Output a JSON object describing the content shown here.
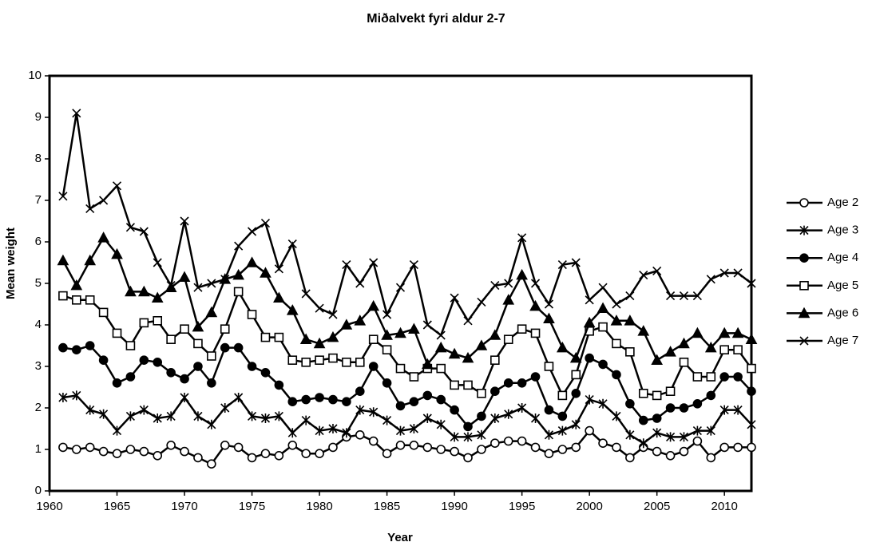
{
  "chart_data": {
    "type": "line",
    "title": "Miðalvekt fyri aldur 2-7",
    "xlabel": "Year",
    "ylabel": "Mean weight",
    "x": [
      1961,
      1962,
      1963,
      1964,
      1965,
      1966,
      1967,
      1968,
      1969,
      1970,
      1971,
      1972,
      1973,
      1974,
      1975,
      1976,
      1977,
      1978,
      1979,
      1980,
      1981,
      1982,
      1983,
      1984,
      1985,
      1986,
      1987,
      1988,
      1989,
      1990,
      1991,
      1992,
      1993,
      1994,
      1995,
      1996,
      1997,
      1998,
      1999,
      2000,
      2001,
      2002,
      2003,
      2004,
      2005,
      2006,
      2007,
      2008,
      2009,
      2010,
      2011,
      2012
    ],
    "xlim": [
      1960,
      2012
    ],
    "xticks": [
      1960,
      1965,
      1970,
      1975,
      1980,
      1985,
      1990,
      1995,
      2000,
      2005,
      2010
    ],
    "ylim": [
      0,
      10
    ],
    "yticks": [
      0,
      1,
      2,
      3,
      4,
      5,
      6,
      7,
      8,
      9,
      10
    ],
    "grid": false,
    "legend": "right",
    "series": [
      {
        "name": "Age 2",
        "color": "#000000",
        "marker": "circle-open",
        "values": [
          1.05,
          1.0,
          1.05,
          0.95,
          0.9,
          1.0,
          0.95,
          0.85,
          1.1,
          0.95,
          0.8,
          0.65,
          1.1,
          1.05,
          0.8,
          0.9,
          0.85,
          1.1,
          0.9,
          0.9,
          1.05,
          1.3,
          1.35,
          1.2,
          0.9,
          1.1,
          1.1,
          1.05,
          1.0,
          0.95,
          0.8,
          1.0,
          1.15,
          1.2,
          1.2,
          1.05,
          0.9,
          1.0,
          1.05,
          1.45,
          1.15,
          1.05,
          0.8,
          1.05,
          0.95,
          0.85,
          0.95,
          1.2,
          0.8,
          1.05,
          1.05,
          1.05
        ]
      },
      {
        "name": "Age 3",
        "color": "#000000",
        "marker": "asterisk",
        "values": [
          2.25,
          2.3,
          1.95,
          1.85,
          1.45,
          1.8,
          1.95,
          1.75,
          1.8,
          2.25,
          1.8,
          1.6,
          2.0,
          2.25,
          1.8,
          1.75,
          1.8,
          1.4,
          1.7,
          1.45,
          1.5,
          1.4,
          1.95,
          1.9,
          1.7,
          1.45,
          1.5,
          1.75,
          1.6,
          1.3,
          1.3,
          1.35,
          1.75,
          1.85,
          2.0,
          1.75,
          1.35,
          1.45,
          1.6,
          2.2,
          2.1,
          1.8,
          1.35,
          1.15,
          1.4,
          1.3,
          1.3,
          1.45,
          1.45,
          1.95,
          1.95,
          1.6
        ]
      },
      {
        "name": "Age 4",
        "color": "#000000",
        "marker": "circle",
        "values": [
          3.45,
          3.4,
          3.5,
          3.15,
          2.6,
          2.75,
          3.15,
          3.1,
          2.85,
          2.7,
          3.0,
          2.6,
          3.45,
          3.45,
          3.0,
          2.85,
          2.55,
          2.15,
          2.2,
          2.25,
          2.2,
          2.15,
          2.4,
          3.0,
          2.6,
          2.05,
          2.15,
          2.3,
          2.2,
          1.95,
          1.55,
          1.8,
          2.4,
          2.6,
          2.6,
          2.75,
          1.95,
          1.8,
          2.35,
          3.2,
          3.05,
          2.8,
          2.1,
          1.7,
          1.75,
          2.0,
          2.0,
          2.1,
          2.3,
          2.75,
          2.75,
          2.4
        ]
      },
      {
        "name": "Age 5",
        "color": "#000000",
        "marker": "square-open",
        "values": [
          4.7,
          4.6,
          4.6,
          4.3,
          3.8,
          3.5,
          4.05,
          4.1,
          3.65,
          3.9,
          3.55,
          3.25,
          3.9,
          4.8,
          4.25,
          3.7,
          3.7,
          3.15,
          3.1,
          3.15,
          3.2,
          3.1,
          3.1,
          3.65,
          3.4,
          2.95,
          2.75,
          2.95,
          2.95,
          2.55,
          2.55,
          2.35,
          3.15,
          3.65,
          3.9,
          3.8,
          3.0,
          2.3,
          2.8,
          3.85,
          3.95,
          3.55,
          3.35,
          2.35,
          2.3,
          2.4,
          3.1,
          2.75,
          2.75,
          3.4,
          3.4,
          2.95
        ]
      },
      {
        "name": "Age 6",
        "color": "#000000",
        "marker": "triangle",
        "values": [
          5.55,
          4.95,
          5.55,
          6.1,
          5.7,
          4.8,
          4.8,
          4.65,
          4.9,
          5.15,
          3.95,
          4.3,
          5.1,
          5.2,
          5.5,
          5.25,
          4.65,
          4.35,
          3.65,
          3.55,
          3.7,
          4.0,
          4.1,
          4.45,
          3.75,
          3.8,
          3.9,
          3.05,
          3.45,
          3.3,
          3.2,
          3.5,
          3.75,
          4.6,
          5.2,
          4.45,
          4.15,
          3.45,
          3.2,
          4.05,
          4.4,
          4.1,
          4.1,
          3.85,
          3.15,
          3.35,
          3.55,
          3.8,
          3.45,
          3.8,
          3.8,
          3.65
        ]
      },
      {
        "name": "Age 7",
        "color": "#000000",
        "marker": "x",
        "values": [
          7.1,
          9.1,
          6.8,
          7.0,
          7.35,
          6.35,
          6.25,
          5.5,
          4.95,
          6.5,
          4.9,
          5.0,
          5.1,
          5.9,
          6.25,
          6.45,
          5.35,
          5.95,
          4.75,
          4.4,
          4.25,
          5.45,
          5.0,
          5.5,
          4.25,
          4.9,
          5.45,
          4.0,
          3.75,
          4.65,
          4.1,
          4.55,
          4.95,
          5.0,
          6.1,
          5.0,
          4.5,
          5.45,
          5.5,
          4.6,
          4.9,
          4.5,
          4.7,
          5.2,
          5.3,
          4.7,
          4.7,
          4.7,
          5.1,
          5.25,
          5.25,
          5.0
        ]
      }
    ]
  }
}
